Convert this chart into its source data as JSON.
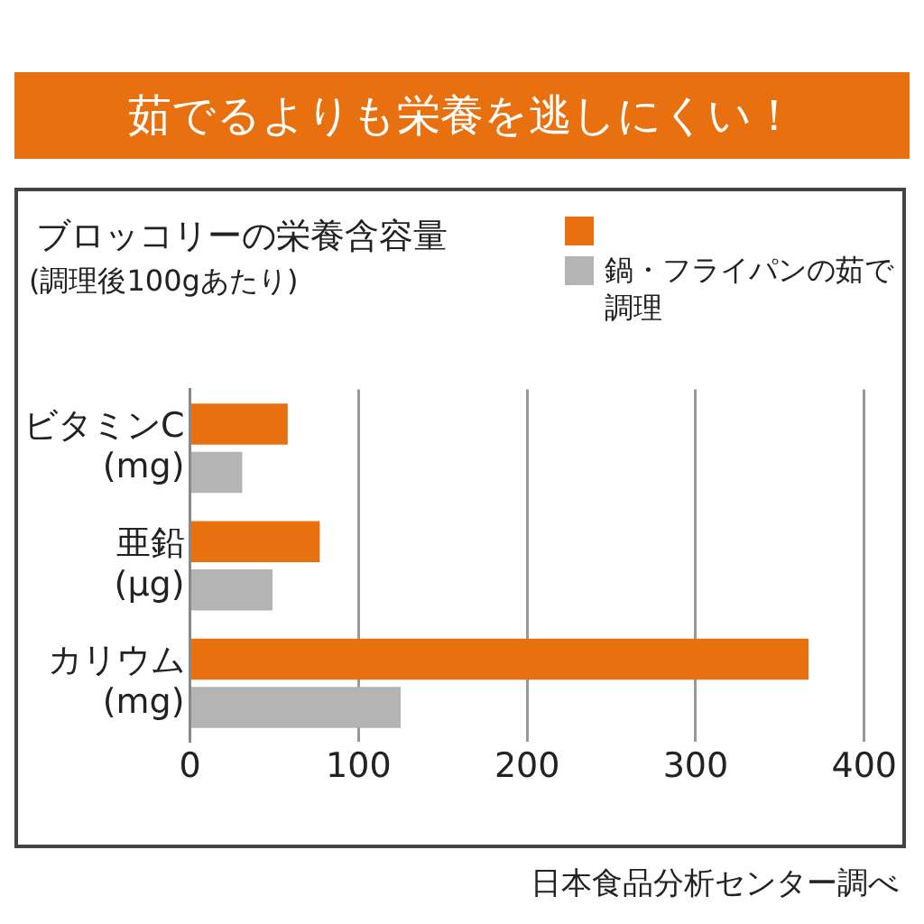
{
  "chart_data": {
    "type": "bar",
    "orientation": "horizontal",
    "title": "茹でるよりも栄養を逃しにくい！",
    "subtitle": "ブロッコリーの栄養含容量",
    "annotations": [
      "(調理後100gあたり)",
      "日本食品分析センター調べ"
    ],
    "categories": [
      "ビタミンC (mg)",
      "亜鉛 (μg)",
      "カリウム (mg)"
    ],
    "series": [
      {
        "color": "#e8700f",
        "values": [
          58,
          77,
          367
        ]
      },
      {
        "name": "鍋・フライパンの茹で調理",
        "color": "#b4b4b4",
        "values": [
          31,
          49,
          125
        ]
      }
    ],
    "xlim": [
      0,
      400
    ],
    "xticks": [
      0,
      100,
      200,
      300,
      400
    ],
    "grid": "x",
    "legend": "top right"
  }
}
